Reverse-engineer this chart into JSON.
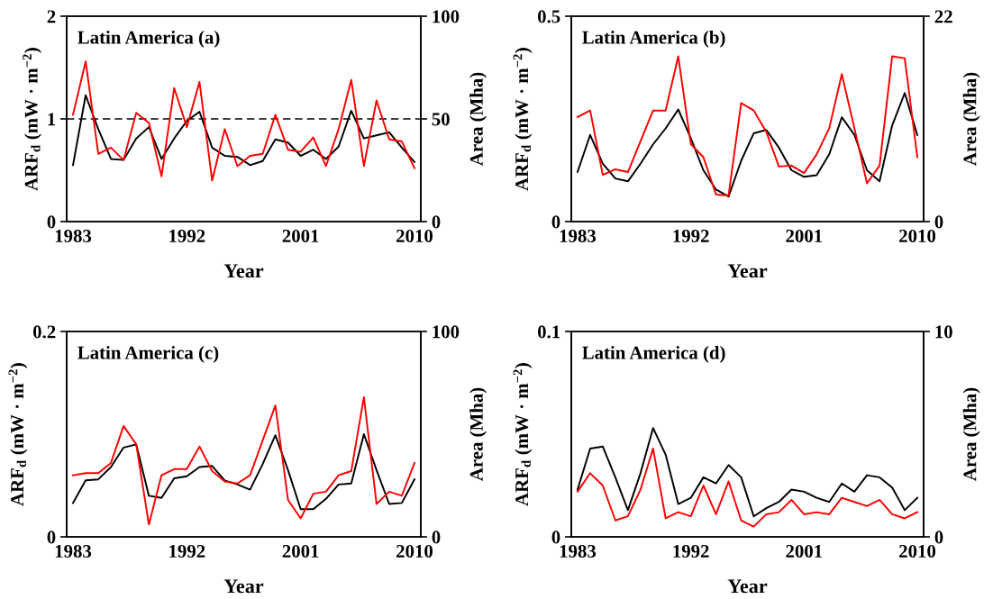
{
  "chart_data": [
    {
      "type": "line",
      "title": "Latin America (a)",
      "xlabel": "Year",
      "ylabel": "ARF$_{d}$ (mW · m$^{−2}$)",
      "y2label": "Area (Mha)",
      "x": [
        1983,
        1984,
        1985,
        1986,
        1987,
        1988,
        1989,
        1990,
        1991,
        1992,
        1993,
        1994,
        1995,
        1996,
        1997,
        1998,
        1999,
        2000,
        2001,
        2002,
        2003,
        2004,
        2005,
        2006,
        2007,
        2008,
        2009,
        2010
      ],
      "xlim": [
        1982.5,
        2010.5
      ],
      "xticks": [
        1983,
        1992,
        2001,
        2010
      ],
      "ylim": [
        0,
        2
      ],
      "yticks": [
        0,
        1,
        2
      ],
      "y2lim": [
        0,
        100
      ],
      "y2ticks": [
        0,
        50,
        100
      ],
      "grid": false,
      "legend": false,
      "line_style": "solid",
      "marker": "none",
      "ref_lines": [
        {
          "axis": "y",
          "value": 1,
          "color": "#000000",
          "line_style": "dashed"
        }
      ],
      "series": [
        {
          "color": "#000000",
          "values": [
            0.55,
            1.23,
            0.9,
            0.61,
            0.6,
            0.81,
            0.92,
            0.61,
            0.81,
            0.98,
            1.07,
            0.72,
            0.64,
            0.63,
            0.55,
            0.59,
            0.8,
            0.77,
            0.64,
            0.7,
            0.61,
            0.73,
            1.08,
            0.81,
            0.84,
            0.87,
            0.72,
            0.58
          ]
        },
        {
          "color": "#ff0000",
          "axis": "y2",
          "values": [
            52,
            78,
            33,
            36,
            30,
            53,
            48,
            22,
            65,
            46,
            68,
            20,
            45,
            27,
            32,
            33,
            52,
            35,
            34,
            41,
            27,
            45,
            69,
            27,
            59,
            40,
            39,
            26
          ]
        }
      ]
    },
    {
      "type": "line",
      "title": "Latin America (b)",
      "xlabel": "Year",
      "ylabel": "ARF$_{d}$ (mW · m$^{−2}$)",
      "y2label": "Area (Mha)",
      "x": [
        1983,
        1984,
        1985,
        1986,
        1987,
        1988,
        1989,
        1990,
        1991,
        1992,
        1993,
        1994,
        1995,
        1996,
        1997,
        1998,
        1999,
        2000,
        2001,
        2002,
        2003,
        2004,
        2005,
        2006,
        2007,
        2008,
        2009,
        2010
      ],
      "xlim": [
        1982.5,
        2010.5
      ],
      "xticks": [
        1983,
        1992,
        2001,
        2010
      ],
      "ylim": [
        0,
        0.5
      ],
      "yticks": [
        0,
        0.5
      ],
      "y2lim": [
        0,
        22
      ],
      "y2ticks": [
        0,
        22
      ],
      "grid": false,
      "legend": false,
      "line_style": "solid",
      "marker": "none",
      "series": [
        {
          "color": "#000000",
          "values": [
            0.121,
            0.211,
            0.141,
            0.105,
            0.098,
            0.141,
            0.188,
            0.227,
            0.273,
            0.203,
            0.125,
            0.078,
            0.061,
            0.148,
            0.215,
            0.223,
            0.18,
            0.125,
            0.109,
            0.113,
            0.164,
            0.254,
            0.211,
            0.125,
            0.098,
            0.234,
            0.313,
            0.211
          ]
        },
        {
          "color": "#ff0000",
          "axis": "y2",
          "values": [
            11.2,
            11.9,
            5.0,
            5.6,
            5.3,
            8.6,
            11.9,
            11.9,
            17.7,
            8.3,
            6.9,
            2.9,
            2.8,
            12.7,
            11.9,
            9.6,
            5.9,
            6.0,
            5.2,
            7.2,
            10.0,
            15.8,
            10.0,
            4.1,
            6.0,
            17.7,
            17.5,
            6.9
          ]
        }
      ]
    },
    {
      "type": "line",
      "title": "Latin America (c)",
      "xlabel": "Year",
      "ylabel": "ARF$_{d}$ (mW · m$^{−2}$)",
      "y2label": "Area (Mha)",
      "x": [
        1983,
        1984,
        1985,
        1986,
        1987,
        1988,
        1989,
        1990,
        1991,
        1992,
        1993,
        1994,
        1995,
        1996,
        1997,
        1998,
        1999,
        2000,
        2001,
        2002,
        2003,
        2004,
        2005,
        2006,
        2007,
        2008,
        2009,
        2010
      ],
      "xlim": [
        1982.5,
        2010.5
      ],
      "xticks": [
        1983,
        1992,
        2001,
        2010
      ],
      "ylim": [
        0,
        0.2
      ],
      "yticks": [
        0,
        0.2
      ],
      "y2lim": [
        0,
        100
      ],
      "y2ticks": [
        0,
        100
      ],
      "grid": false,
      "legend": false,
      "line_style": "solid",
      "marker": "none",
      "series": [
        {
          "color": "#000000",
          "values": [
            0.033,
            0.055,
            0.056,
            0.068,
            0.087,
            0.09,
            0.04,
            0.038,
            0.057,
            0.059,
            0.068,
            0.069,
            0.055,
            0.051,
            0.046,
            0.071,
            0.099,
            0.065,
            0.027,
            0.027,
            0.037,
            0.051,
            0.052,
            0.1,
            0.065,
            0.032,
            0.033,
            0.056
          ]
        },
        {
          "color": "#ff0000",
          "axis": "y2",
          "values": [
            30,
            31,
            31,
            36,
            54,
            45,
            6,
            30,
            33,
            33,
            44,
            32,
            27,
            26,
            30,
            47,
            64,
            18,
            9,
            21,
            22,
            30,
            32,
            68,
            16,
            22,
            20,
            36
          ]
        }
      ]
    },
    {
      "type": "line",
      "title": "Latin America (d)",
      "xlabel": "Year",
      "ylabel": "ARF$_{d}$ (mW · m$^{−2}$)",
      "y2label": "Area (Mha)",
      "x": [
        1983,
        1984,
        1985,
        1986,
        1987,
        1988,
        1989,
        1990,
        1991,
        1992,
        1993,
        1994,
        1995,
        1996,
        1997,
        1998,
        1999,
        2000,
        2001,
        2002,
        2003,
        2004,
        2005,
        2006,
        2007,
        2008,
        2009,
        2010
      ],
      "xlim": [
        1982.5,
        2010.5
      ],
      "xticks": [
        1983,
        1992,
        2001,
        2010
      ],
      "ylim": [
        0,
        0.1
      ],
      "yticks": [
        0,
        0.1
      ],
      "y2lim": [
        0,
        10
      ],
      "y2ticks": [
        0,
        10
      ],
      "grid": false,
      "legend": false,
      "line_style": "solid",
      "marker": "none",
      "series": [
        {
          "color": "#000000",
          "values": [
            0.023,
            0.043,
            0.044,
            0.029,
            0.013,
            0.031,
            0.053,
            0.04,
            0.016,
            0.019,
            0.029,
            0.026,
            0.035,
            0.029,
            0.01,
            0.014,
            0.017,
            0.023,
            0.022,
            0.019,
            0.017,
            0.026,
            0.022,
            0.03,
            0.029,
            0.024,
            0.013,
            0.019
          ]
        },
        {
          "color": "#ff0000",
          "axis": "y2",
          "values": [
            2.2,
            3.1,
            2.5,
            0.8,
            1.0,
            2.3,
            4.3,
            0.9,
            1.2,
            1.0,
            2.5,
            1.1,
            2.7,
            0.8,
            0.5,
            1.1,
            1.2,
            1.8,
            1.1,
            1.2,
            1.1,
            1.9,
            1.7,
            1.5,
            1.8,
            1.1,
            0.9,
            1.2
          ]
        }
      ]
    }
  ]
}
